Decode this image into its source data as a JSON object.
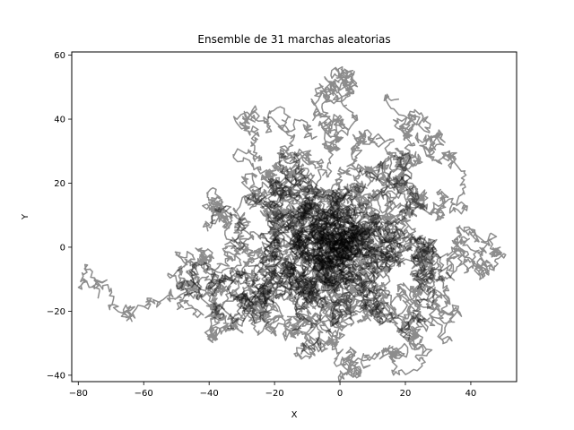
{
  "chart_data": {
    "type": "line",
    "title": "Ensemble de 31 marchas aleatorias",
    "xlabel": "X",
    "ylabel": "Y",
    "xlim": [
      -82,
      54
    ],
    "ylim": [
      -42,
      61
    ],
    "xticks": [
      -80,
      -60,
      -40,
      -20,
      0,
      20,
      40
    ],
    "yticks": [
      -40,
      -20,
      0,
      20,
      40,
      60
    ],
    "xtick_labels": [
      "−80",
      "−60",
      "−40",
      "−20",
      "0",
      "20",
      "40"
    ],
    "ytick_labels": [
      "−40",
      "−20",
      "0",
      "20",
      "40",
      "60"
    ],
    "grid": false,
    "series_count": 31,
    "line_color": "#000000",
    "line_alpha": 0.45,
    "waypoints": [
      [
        [
          0,
          0
        ],
        [
          -8,
          4
        ],
        [
          -18,
          10
        ],
        [
          -26,
          20
        ],
        [
          -30,
          30
        ],
        [
          -22,
          40
        ]
      ],
      [
        [
          0,
          0
        ],
        [
          -10,
          -4
        ],
        [
          -22,
          -10
        ],
        [
          -30,
          -16
        ],
        [
          -34,
          -22
        ]
      ],
      [
        [
          0,
          0
        ],
        [
          -12,
          -6
        ],
        [
          -28,
          -8
        ],
        [
          -45,
          -12
        ],
        [
          -58,
          -16
        ],
        [
          -74,
          -15
        ]
      ],
      [
        [
          0,
          0
        ],
        [
          -14,
          -2
        ],
        [
          -26,
          -10
        ],
        [
          -38,
          -14
        ],
        [
          -46,
          -20
        ]
      ],
      [
        [
          0,
          0
        ],
        [
          -6,
          10
        ],
        [
          -12,
          22
        ],
        [
          -12,
          30
        ],
        [
          -8,
          34
        ]
      ],
      [
        [
          0,
          0
        ],
        [
          -4,
          12
        ],
        [
          -2,
          24
        ],
        [
          -4,
          34
        ],
        [
          -2,
          42
        ],
        [
          2,
          50
        ],
        [
          0,
          54
        ]
      ],
      [
        [
          0,
          0
        ],
        [
          6,
          8
        ],
        [
          12,
          16
        ],
        [
          18,
          26
        ],
        [
          20,
          36
        ],
        [
          18,
          46
        ]
      ],
      [
        [
          0,
          0
        ],
        [
          12,
          -4
        ],
        [
          24,
          -10
        ],
        [
          28,
          -18
        ],
        [
          26,
          -24
        ]
      ],
      [
        [
          0,
          0
        ],
        [
          -2,
          -12
        ],
        [
          -2,
          -24
        ],
        [
          2,
          -34
        ],
        [
          8,
          -38
        ]
      ],
      [
        [
          0,
          0
        ],
        [
          10,
          6
        ],
        [
          22,
          10
        ],
        [
          32,
          16
        ],
        [
          34,
          28
        ],
        [
          24,
          34
        ]
      ],
      [
        [
          0,
          0
        ],
        [
          14,
          2
        ],
        [
          26,
          -2
        ],
        [
          36,
          0
        ],
        [
          42,
          4
        ],
        [
          47,
          2
        ]
      ],
      [
        [
          0,
          0
        ],
        [
          8,
          -10
        ],
        [
          16,
          -18
        ],
        [
          24,
          -22
        ],
        [
          30,
          -14
        ]
      ],
      [
        [
          0,
          0
        ],
        [
          -16,
          6
        ],
        [
          -30,
          2
        ],
        [
          -42,
          -4
        ],
        [
          -50,
          -8
        ]
      ],
      [
        [
          0,
          0
        ],
        [
          -18,
          -14
        ],
        [
          -22,
          -22
        ],
        [
          -16,
          -28
        ],
        [
          -10,
          -32
        ]
      ],
      [
        [
          0,
          0
        ],
        [
          -8,
          -12
        ],
        [
          -18,
          -16
        ],
        [
          -28,
          -20
        ]
      ],
      [
        [
          0,
          0
        ],
        [
          -10,
          14
        ],
        [
          -20,
          6
        ],
        [
          -30,
          8
        ],
        [
          -40,
          6
        ]
      ],
      [
        [
          0,
          0
        ],
        [
          4,
          14
        ],
        [
          10,
          22
        ],
        [
          16,
          28
        ],
        [
          12,
          34
        ]
      ],
      [
        [
          0,
          0
        ],
        [
          18,
          4
        ],
        [
          28,
          -4
        ],
        [
          34,
          -10
        ]
      ],
      [
        [
          0,
          0
        ],
        [
          -6,
          -6
        ],
        [
          -14,
          -2
        ],
        [
          -20,
          -8
        ],
        [
          -24,
          -20
        ],
        [
          -30,
          -26
        ]
      ],
      [
        [
          0,
          0
        ],
        [
          6,
          -14
        ],
        [
          14,
          -22
        ],
        [
          20,
          -28
        ],
        [
          14,
          -32
        ]
      ],
      [
        [
          0,
          0
        ],
        [
          -4,
          6
        ],
        [
          -10,
          12
        ],
        [
          -16,
          18
        ],
        [
          -22,
          16
        ]
      ],
      [
        [
          0,
          0
        ],
        [
          10,
          10
        ],
        [
          16,
          4
        ],
        [
          22,
          0
        ],
        [
          28,
          2
        ]
      ],
      [
        [
          0,
          0
        ],
        [
          -12,
          2
        ],
        [
          -22,
          -4
        ],
        [
          -34,
          -12
        ],
        [
          -40,
          -18
        ]
      ],
      [
        [
          0,
          0
        ],
        [
          2,
          -8
        ],
        [
          -4,
          -16
        ],
        [
          -8,
          -22
        ],
        [
          -12,
          -26
        ]
      ],
      [
        [
          0,
          0
        ],
        [
          -2,
          10
        ],
        [
          -8,
          18
        ],
        [
          -14,
          22
        ],
        [
          -20,
          26
        ]
      ],
      [
        [
          0,
          0
        ],
        [
          8,
          2
        ],
        [
          14,
          10
        ],
        [
          20,
          14
        ],
        [
          26,
          12
        ]
      ],
      [
        [
          0,
          0
        ],
        [
          -6,
          -2
        ],
        [
          -12,
          -10
        ],
        [
          -6,
          -18
        ],
        [
          0,
          -24
        ]
      ],
      [
        [
          0,
          0
        ],
        [
          4,
          4
        ],
        [
          8,
          -4
        ],
        [
          14,
          -8
        ],
        [
          20,
          -6
        ]
      ],
      [
        [
          0,
          0
        ],
        [
          -10,
          8
        ],
        [
          -20,
          12
        ],
        [
          -28,
          8
        ],
        [
          -36,
          10
        ]
      ],
      [
        [
          0,
          0
        ],
        [
          6,
          6
        ],
        [
          2,
          14
        ],
        [
          8,
          20
        ],
        [
          14,
          24
        ]
      ],
      [
        [
          0,
          0
        ],
        [
          -4,
          -10
        ],
        [
          4,
          -16
        ],
        [
          10,
          -20
        ],
        [
          18,
          -26
        ]
      ]
    ]
  }
}
